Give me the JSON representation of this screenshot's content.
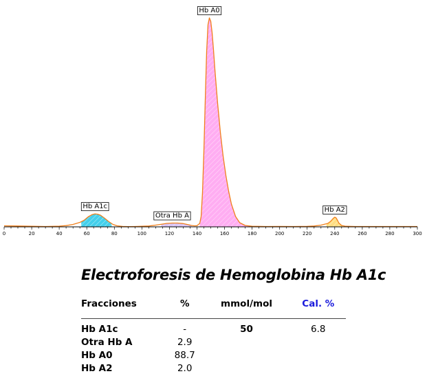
{
  "chart_data": {
    "type": "line",
    "title": "",
    "xlabel": "",
    "ylabel": "",
    "xlim": [
      0,
      300
    ],
    "x_ticks": [
      0,
      20,
      40,
      60,
      80,
      100,
      120,
      140,
      160,
      180,
      200,
      220,
      240,
      260,
      280,
      300
    ],
    "grid": false,
    "series": [
      {
        "x": [
          0,
          10,
          20,
          30,
          40,
          45,
          50,
          55,
          58,
          61,
          64,
          66,
          68,
          70,
          73,
          76,
          79,
          82,
          86,
          90,
          95,
          100,
          105,
          110,
          115,
          118,
          122,
          126,
          130,
          134,
          136,
          138,
          140,
          142,
          143,
          144,
          145,
          146,
          147,
          148,
          149,
          150,
          151,
          152,
          153,
          155,
          157,
          159,
          161,
          163,
          165,
          168,
          171,
          175,
          180,
          190,
          200,
          210,
          220,
          225,
          230,
          235,
          237,
          239,
          240,
          241,
          242,
          243,
          245,
          248,
          255,
          265,
          280,
          300
        ],
        "y": [
          1.5,
          1.2,
          0.8,
          0.5,
          1.0,
          1.8,
          3.5,
          6.5,
          9.5,
          14.5,
          18.0,
          19.0,
          18.5,
          17.0,
          12.5,
          7.5,
          3.5,
          1.5,
          0.6,
          0.4,
          0.5,
          0.8,
          1.2,
          2.5,
          4.0,
          5.0,
          5.5,
          5.5,
          4.8,
          3.0,
          2.0,
          1.5,
          1.7,
          5.0,
          15.0,
          50.0,
          110.0,
          185.0,
          255.0,
          295.0,
          305.0,
          300.0,
          283.0,
          258.0,
          230.0,
          180.0,
          138.0,
          103.0,
          75.0,
          52.0,
          33.0,
          15.0,
          6.0,
          2.0,
          0.8,
          0.5,
          0.6,
          0.5,
          0.7,
          1.2,
          2.5,
          5.0,
          8.0,
          12.5,
          14.0,
          13.0,
          9.5,
          5.5,
          2.0,
          0.8,
          0.5,
          0.5,
          0.5,
          0.5
        ]
      }
    ],
    "peaks": [
      {
        "label": "Hb A1c",
        "x_start": 56,
        "x_end": 78,
        "color": "#22c7e8"
      },
      {
        "label": "Otra Hb A",
        "x_start": 114,
        "x_end": 136,
        "color": "#d2b9f2"
      },
      {
        "label": "Hb A0",
        "x_start": 142,
        "x_end": 180,
        "color": "#ff9ff0"
      },
      {
        "label": "Hb A2",
        "x_start": 234,
        "x_end": 246,
        "color": "#ffd86b"
      }
    ],
    "colors": {
      "curve": "#f07f1a",
      "baseline": "#000000"
    }
  },
  "report": {
    "title": "Electroforesis de Hemoglobina Hb A1c",
    "headers": {
      "fraction": "Fracciones",
      "percent": "%",
      "mmol": "mmol/mol",
      "cal": "Cal. %"
    },
    "rows": [
      {
        "name": "Hb A1c",
        "percent": "-",
        "mmol": "50",
        "cal": "6.8"
      },
      {
        "name": "Otra Hb A",
        "percent": "2.9",
        "mmol": "",
        "cal": ""
      },
      {
        "name": "Hb A0",
        "percent": "88.7",
        "mmol": "",
        "cal": ""
      },
      {
        "name": "Hb A2",
        "percent": "2.0",
        "mmol": "",
        "cal": ""
      }
    ]
  }
}
